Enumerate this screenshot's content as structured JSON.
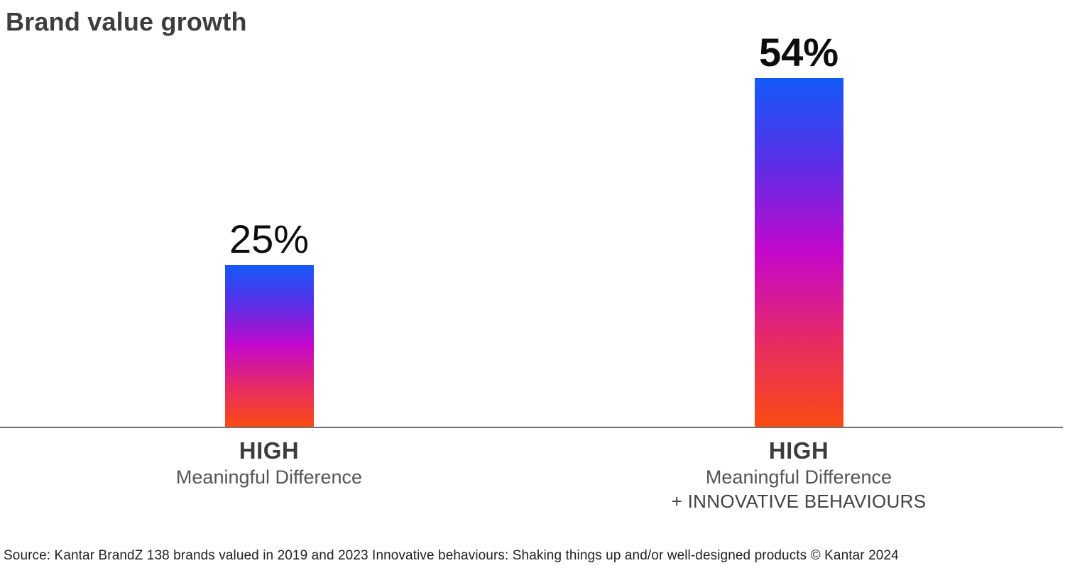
{
  "header": {
    "title": "Brand value growth"
  },
  "chart_data": {
    "type": "bar",
    "title": "Brand value growth",
    "categories": [
      "HIGH Meaningful Difference",
      "HIGH Meaningful Difference + INNOVATIVE BEHAVIOURS"
    ],
    "values": [
      25,
      54
    ],
    "value_labels": [
      "25%",
      "54%"
    ],
    "unit": "%",
    "ylim": [
      0,
      60
    ],
    "grid": false,
    "legend": false,
    "bar_gradient_top_to_bottom": [
      "#1459fa",
      "#5c2ee6",
      "#c408cc",
      "#e62a66",
      "#fa4a12"
    ],
    "axis_color": "#707070"
  },
  "bars": [
    {
      "value_label": "25%",
      "label_line1": "HIGH",
      "label_line2": "Meaningful Difference",
      "label_line3": ""
    },
    {
      "value_label": "54%",
      "label_line1": "HIGH",
      "label_line2": "Meaningful Difference",
      "label_line3": "+ INNOVATIVE BEHAVIOURS"
    }
  ],
  "footer": {
    "source": "Source: Kantar BrandZ 138 brands valued in 2019 and 2023 Innovative behaviours: Shaking things up and/or well-designed products © Kantar 2024"
  }
}
